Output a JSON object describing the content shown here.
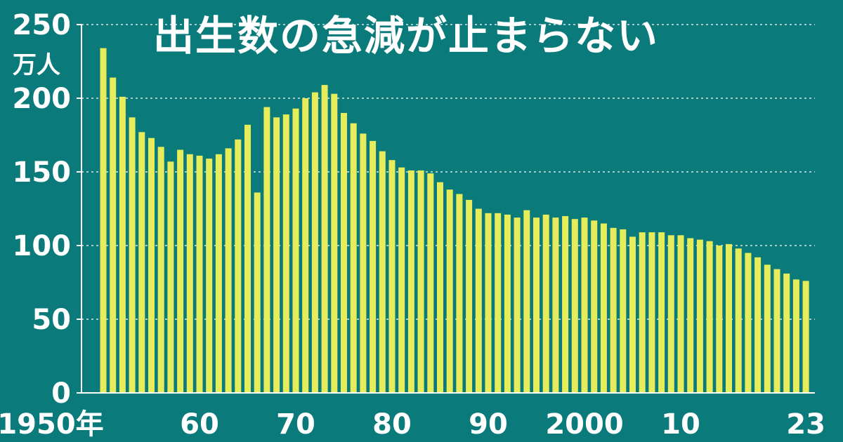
{
  "chart_data": {
    "type": "bar",
    "title": "出生数の急減が止まらない",
    "ylabel": "万人",
    "ylim": [
      0,
      250
    ],
    "yticks": [
      0,
      50,
      100,
      150,
      200,
      250
    ],
    "grid": true,
    "x_start": 1950,
    "x_end": 2023,
    "xtick_labels": [
      {
        "year": 1950,
        "label": "1950年"
      },
      {
        "year": 1960,
        "label": "60"
      },
      {
        "year": 1970,
        "label": "70"
      },
      {
        "year": 1980,
        "label": "80"
      },
      {
        "year": 1990,
        "label": "90"
      },
      {
        "year": 2000,
        "label": "2000"
      },
      {
        "year": 2010,
        "label": "10"
      },
      {
        "year": 2023,
        "label": "23"
      }
    ],
    "values": [
      234,
      214,
      201,
      187,
      177,
      173,
      167,
      157,
      165,
      162,
      161,
      159,
      162,
      166,
      172,
      182,
      136,
      194,
      187,
      189,
      193,
      200,
      204,
      209,
      203,
      190,
      183,
      176,
      171,
      164,
      158,
      153,
      151,
      151,
      149,
      143,
      138,
      135,
      131,
      125,
      122,
      122,
      121,
      119,
      124,
      119,
      121,
      119,
      120,
      118,
      119,
      117,
      115,
      112,
      111,
      106,
      109,
      109,
      109,
      107,
      107,
      105,
      104,
      103,
      100,
      101,
      98,
      95,
      92,
      87,
      84,
      81,
      77,
      76
    ]
  },
  "colors": {
    "background": "#0b7a7a",
    "bar": "#e6ec5a",
    "text": "#ffffff",
    "grid": "#d8e8e8"
  }
}
